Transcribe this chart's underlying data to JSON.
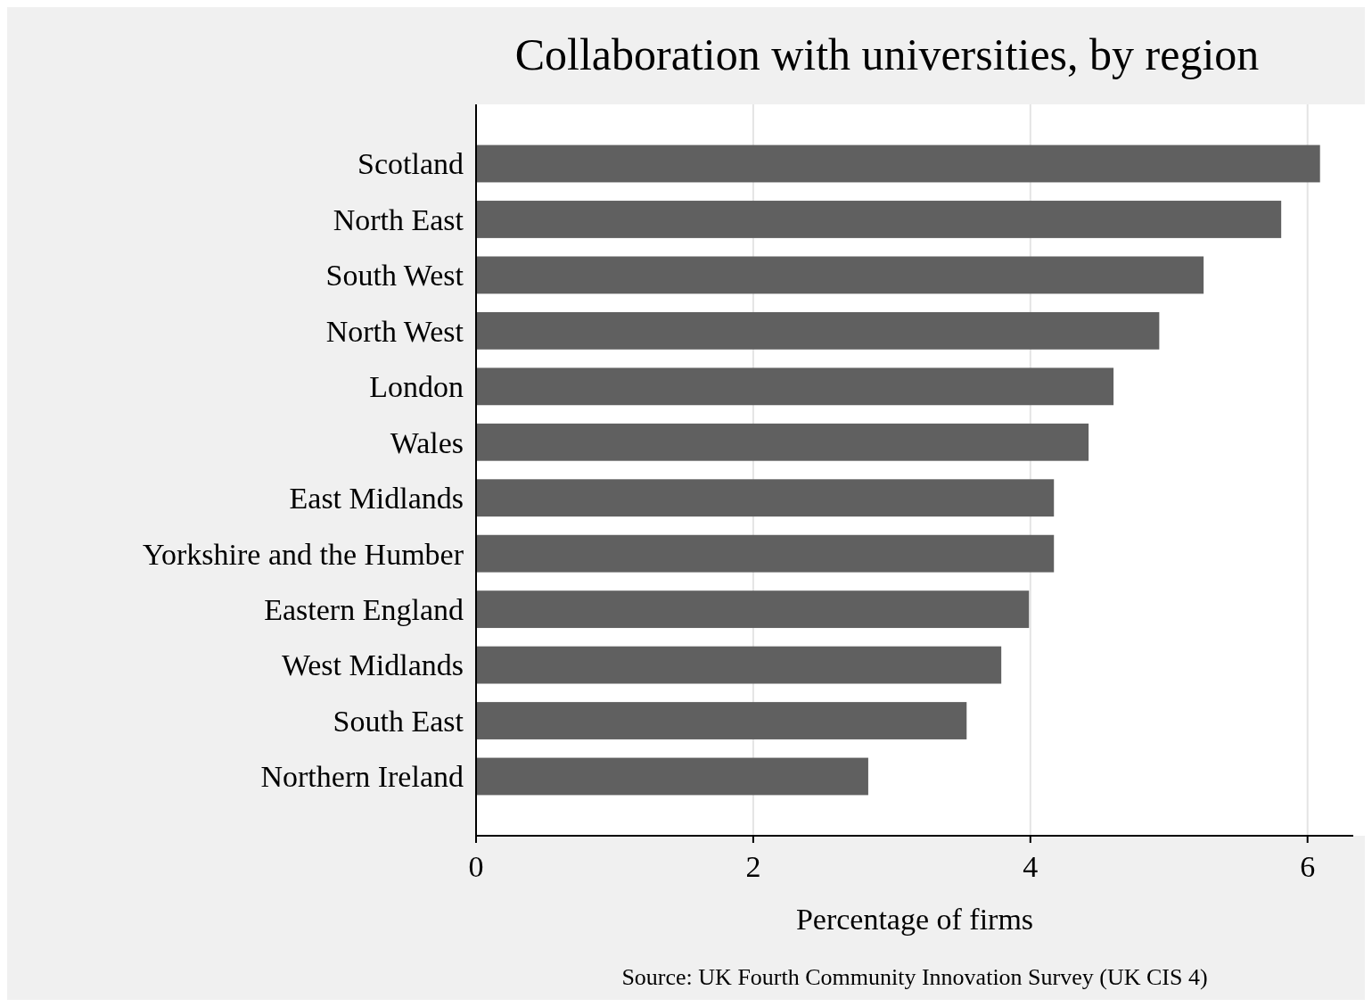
{
  "chart_data": {
    "type": "bar",
    "orientation": "horizontal",
    "title": "Collaboration with universities, by region",
    "xlabel": "Percentage of firms",
    "annotations": [
      "Source: UK Fourth Community Innovation Survey (UK CIS 4)"
    ],
    "categories": [
      "Scotland",
      "North East",
      "South West",
      "North West",
      "London",
      "Wales",
      "East Midlands",
      "Yorkshire and the Humber",
      "Eastern England",
      "West Midlands",
      "South East",
      "Northern Ireland"
    ],
    "values": [
      6.09,
      5.81,
      5.25,
      4.93,
      4.6,
      4.42,
      4.17,
      4.17,
      3.99,
      3.79,
      3.54,
      2.83
    ],
    "color": "#606060",
    "xlim": [
      0,
      6.33
    ],
    "xticks": [
      0,
      2,
      4,
      6
    ],
    "grid": "x"
  }
}
